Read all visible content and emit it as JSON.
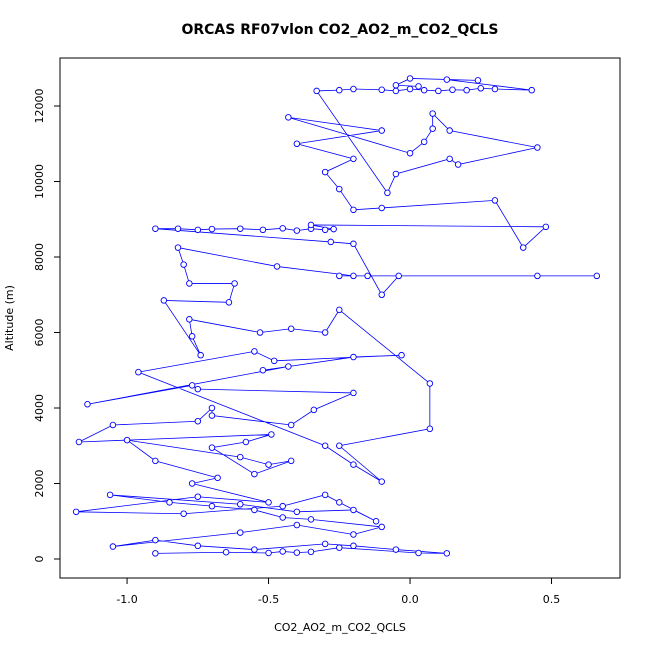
{
  "chart_data": {
    "type": "line",
    "title": "ORCAS RF07vlon CO2_AO2_m_CO2_QCLS",
    "x_label": "CO2_AO2_m_CO2_QCLS",
    "y_label": "Altitude (m)",
    "color": "#0000ff",
    "marker": "circle",
    "xlim": [
      -1.237,
      0.742
    ],
    "ylim": [
      -503,
      13272
    ],
    "xticks": [
      {
        "value": -1.0,
        "label": "-1.0"
      },
      -0.5,
      {
        "value": 0,
        "label": "0.0"
      },
      0.5
    ],
    "yticks": [
      0,
      2000,
      4000,
      6000,
      8000,
      10000,
      12000
    ],
    "x": [
      -0.9,
      -0.65,
      -0.5,
      -0.45,
      -0.4,
      -0.35,
      -0.25,
      0.03,
      0.13,
      -0.05,
      -0.2,
      -0.3,
      -0.55,
      -0.75,
      -0.9,
      -1.05,
      -0.6,
      -0.4,
      -0.2,
      -0.1,
      -0.35,
      -0.45,
      -0.55,
      -0.7,
      -0.85,
      -1.06,
      -0.6,
      -0.4,
      -0.2,
      -0.12,
      -0.25,
      -0.3,
      -0.45,
      -0.8,
      -1.18,
      -0.75,
      -0.5,
      -0.77,
      -0.68,
      -0.9,
      -1.0,
      -0.6,
      -0.5,
      -0.42,
      -0.55,
      -0.7,
      -0.58,
      -0.49,
      -1.17,
      -1.05,
      -0.75,
      -0.7,
      -0.7,
      -0.42,
      -0.34,
      -0.2,
      -0.75,
      -0.77,
      -1.14,
      -0.43,
      -0.52,
      -0.2,
      -0.03,
      -0.48,
      -0.55,
      -0.96,
      -0.3,
      -0.2,
      -0.1,
      -0.25,
      0.07,
      0.07,
      -0.25,
      -0.3,
      -0.42,
      -0.53,
      -0.78,
      -0.77,
      -0.74,
      -0.87,
      -0.64,
      -0.62,
      -0.78,
      -0.8,
      -0.82,
      -0.47,
      -0.2,
      -0.25,
      -0.15,
      0.45,
      0.66,
      -0.04,
      -0.1,
      -0.2,
      -0.28,
      -0.9,
      -0.82,
      -0.75,
      -0.7,
      -0.6,
      -0.52,
      -0.45,
      -0.4,
      -0.35,
      -0.3,
      -0.27,
      -0.35,
      0.48,
      0.4,
      0.3,
      -0.1,
      -0.2,
      -0.25,
      -0.3,
      -0.2,
      -0.4,
      -0.1,
      -0.43,
      0.0,
      0.05,
      0.08,
      0.08,
      0.14,
      0.45,
      0.17,
      0.14,
      -0.05,
      -0.08,
      -0.33,
      -0.25,
      -0.2,
      -0.1,
      -0.05,
      0.0,
      0.05,
      0.1,
      0.15,
      0.2,
      0.25,
      0.3,
      0.43,
      0.13,
      0.24,
      0.0,
      -0.05,
      0.03
    ],
    "values": [
      150,
      180,
      160,
      200,
      170,
      190,
      300,
      160,
      150,
      250,
      350,
      400,
      250,
      350,
      500,
      330,
      700,
      900,
      650,
      850,
      1050,
      1100,
      1300,
      1400,
      1500,
      1700,
      1450,
      1250,
      1300,
      1000,
      1500,
      1700,
      1400,
      1200,
      1250,
      1650,
      1500,
      2000,
      2150,
      2600,
      3150,
      2700,
      2500,
      2600,
      2250,
      2950,
      3100,
      3300,
      3100,
      3550,
      3650,
      4000,
      3800,
      3550,
      3950,
      4400,
      4500,
      4600,
      4100,
      5100,
      5000,
      5350,
      5400,
      5250,
      5500,
      4950,
      3000,
      2500,
      2050,
      3000,
      3450,
      4650,
      6600,
      6000,
      6100,
      6000,
      6350,
      5900,
      5400,
      6850,
      6800,
      7300,
      7300,
      7800,
      8250,
      7750,
      7500,
      7500,
      7500,
      7500,
      7500,
      7500,
      7000,
      8350,
      8400,
      8750,
      8750,
      8720,
      8740,
      8750,
      8720,
      8760,
      8700,
      8750,
      8720,
      8740,
      8850,
      8800,
      8250,
      9500,
      9300,
      9250,
      9800,
      10250,
      10600,
      11000,
      11350,
      11700,
      10750,
      11050,
      11400,
      11800,
      11350,
      10900,
      10450,
      10600,
      10200,
      9700,
      12400,
      12420,
      12450,
      12430,
      12400,
      12450,
      12420,
      12400,
      12430,
      12420,
      12470,
      12450,
      12420,
      12700,
      12680,
      12730,
      12550,
      12520
    ]
  }
}
